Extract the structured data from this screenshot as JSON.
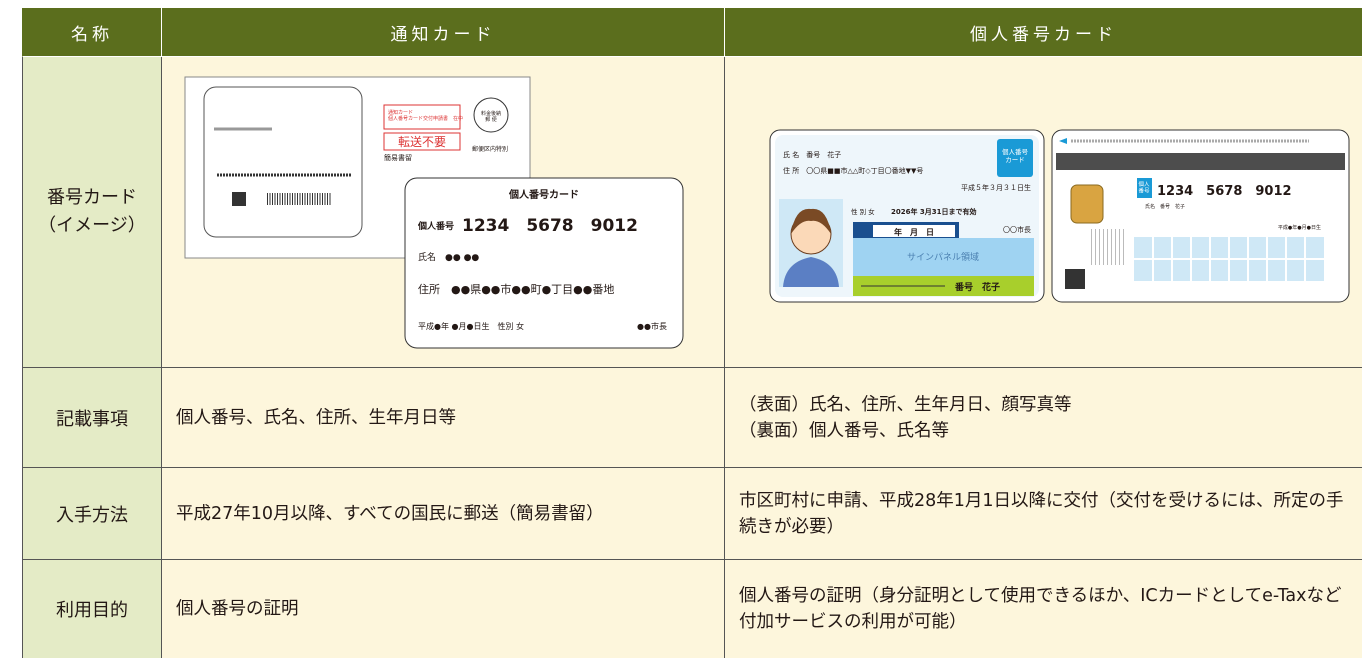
{
  "table": {
    "header": [
      "名称",
      "通知カード",
      "個人番号カード"
    ],
    "image_row": {
      "label": "番号カード\n（イメージ）",
      "notice_card": {
        "envelope": {
          "box_label": "通知カード\n個人番号カード交付申請書　在中",
          "forward": "転送不要",
          "registered": "簡易書留",
          "postage": "料金後納\n郵 便",
          "district": "郵便区内特別"
        },
        "card": {
          "title": "個人番号カード",
          "number_label": "個人番号",
          "number": "1234　5678　9012",
          "name": "氏名　●● ●●",
          "address": "住所　●●県●●市●●町●丁目●●番地",
          "birth": "平成●年 ●月●日生　性別 女",
          "mayor": "●●市長"
        }
      },
      "number_card": {
        "front": {
          "name": "氏 名　番号　花子",
          "address": "住 所　〇〇県■■市△△町◇丁目〇番地▼▼号",
          "birth": "平成５年３月３１日生",
          "sex": "性 別 女",
          "expiry": "2026年 3月31日まで有効",
          "mayor": "〇〇市長",
          "date": "年　月　日",
          "sign": "サインパネル領域",
          "holder": "番号　花子",
          "badge": "個人番号\nカード"
        },
        "back": {
          "badge": "個人\n番号",
          "number": "1234　5678　9012",
          "name": "氏名　番号　花子",
          "birth": "平成●年●月●日生"
        }
      }
    },
    "rows": [
      {
        "label": "記載事項",
        "notice": "個人番号、氏名、住所、生年月日等",
        "card": "（表面）氏名、住所、生年月日、顔写真等\n（裏面）個人番号、氏名等"
      },
      {
        "label": "入手方法",
        "notice": "平成27年10月以降、すべての国民に郵送（簡易書留）",
        "card": "市区町村に申請、平成28年1月1日以降に交付（交付を受けるには、所定の手続きが必要）"
      },
      {
        "label": "利用目的",
        "notice": "個人番号の証明",
        "card": "個人番号の証明（身分証明として使用できるほか、ICカードとしてe-Taxなど付加サービスの利用が可能）"
      }
    ]
  }
}
